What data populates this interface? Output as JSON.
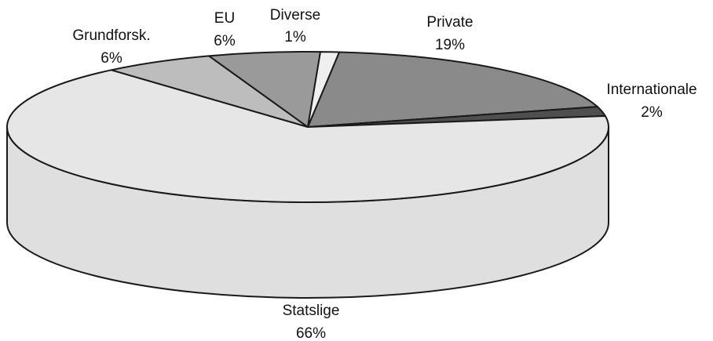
{
  "chart_data": {
    "type": "pie",
    "title": "",
    "slices": [
      {
        "name": "Private",
        "value": 19,
        "pct_label": "19%",
        "color": "#8a8a8a"
      },
      {
        "name": "Internationale",
        "value": 2,
        "pct_label": "2%",
        "color": "#4f4f4f"
      },
      {
        "name": "Statslige",
        "value": 66,
        "pct_label": "66%",
        "color": "#e6e6e6"
      },
      {
        "name": "Grundforsk.",
        "value": 6,
        "pct_label": "6%",
        "color": "#bdbdbd"
      },
      {
        "name": "EU",
        "value": 6,
        "pct_label": "6%",
        "color": "#9a9a9a"
      },
      {
        "name": "Diverse",
        "value": 1,
        "pct_label": "1%",
        "color": "#efefef"
      }
    ],
    "style": "3d-exploded-pie",
    "legend": "none"
  }
}
